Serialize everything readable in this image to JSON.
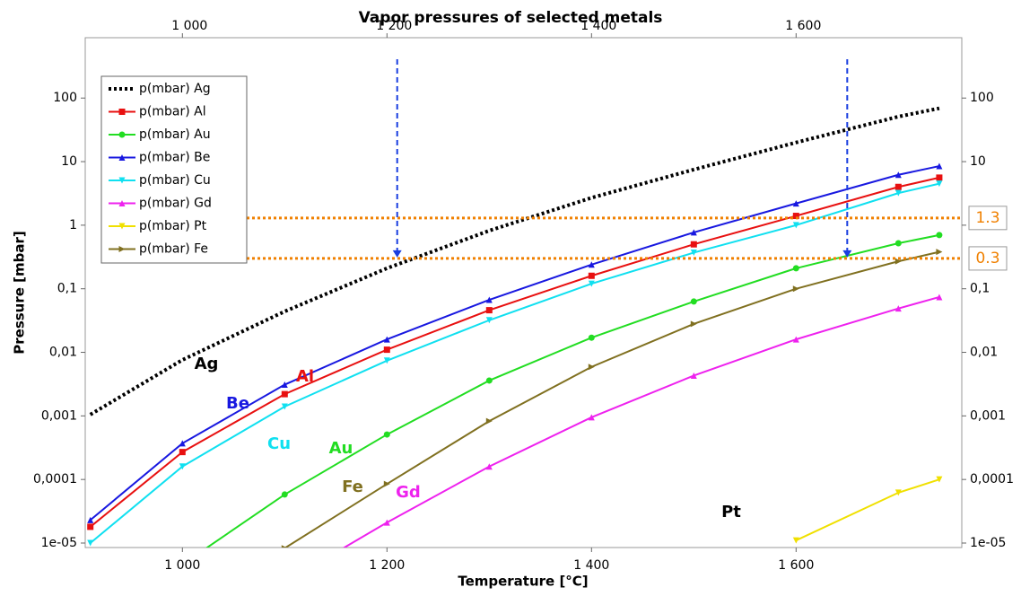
{
  "chart_data": {
    "type": "line",
    "title": "Vapor pressures of selected metals",
    "x_label": "Temperature [°C]",
    "y_label": "Pressure [mbar]",
    "x": [
      910,
      1000,
      1100,
      1200,
      1300,
      1400,
      1500,
      1600,
      1700,
      1740
    ],
    "xlim": [
      905,
      1762
    ],
    "xticks": [
      {
        "value": 1000,
        "label": "1 000"
      },
      {
        "value": 1200,
        "label": "1 200"
      },
      {
        "value": 1400,
        "label": "1 400"
      },
      {
        "value": 1600,
        "label": "1 600"
      }
    ],
    "ylim": [
      8.5e-06,
      890
    ],
    "log_y": true,
    "yticks": [
      100,
      10,
      1,
      {
        "value": 0.1,
        "label": "0,1"
      },
      {
        "value": 0.01,
        "label": "0,01"
      },
      {
        "value": 0.001,
        "label": "0,001"
      },
      {
        "value": 0.0001,
        "label": "0,0001"
      },
      {
        "value": 1e-05,
        "label": "1e-05"
      }
    ],
    "legend": "top-left",
    "series": [
      {
        "name": "p(mbar) Ag",
        "color": "#000000",
        "marker": "dot-line",
        "values": [
          0.00105,
          0.0076,
          0.044,
          0.21,
          0.82,
          2.7,
          7.5,
          20,
          51,
          69
        ]
      },
      {
        "name": "p(mbar) Al",
        "color": "#e81010",
        "marker": "square",
        "values": [
          1.8e-05,
          0.00027,
          0.0022,
          0.011,
          0.046,
          0.16,
          0.5,
          1.4,
          4.0,
          5.6
        ]
      },
      {
        "name": "p(mbar) Au",
        "color": "#22dd22",
        "marker": "circle",
        "values": [
          null,
          4.6e-06,
          5.8e-05,
          0.00051,
          0.0036,
          0.017,
          0.063,
          0.21,
          0.52,
          0.7
        ]
      },
      {
        "name": "p(mbar) Be",
        "color": "#1818e0",
        "marker": "triangle-up",
        "values": [
          2.3e-05,
          0.00037,
          0.0031,
          0.016,
          0.067,
          0.24,
          0.77,
          2.2,
          6.2,
          8.5
        ]
      },
      {
        "name": "p(mbar) Cu",
        "color": "#10e0f0",
        "marker": "triangle-down",
        "values": [
          1e-05,
          0.00016,
          0.0014,
          0.0074,
          0.032,
          0.12,
          0.37,
          1.0,
          3.2,
          4.5
        ]
      },
      {
        "name": "p(mbar) Gd",
        "color": "#ee22ee",
        "marker": "triangle-up",
        "values": [
          null,
          null,
          2.4e-06,
          2.1e-05,
          0.00016,
          0.00095,
          0.0043,
          0.016,
          0.049,
          0.074
        ]
      },
      {
        "name": "p(mbar) Pt",
        "color": "#f0e000",
        "marker": "triangle-down",
        "values": [
          null,
          null,
          null,
          null,
          null,
          null,
          null,
          1.1e-05,
          6.2e-05,
          0.0001
        ]
      },
      {
        "name": "p(mbar) Fe",
        "color": "#807020",
        "marker": "triangle-right",
        "values": [
          null,
          null,
          8.3e-06,
          8.5e-05,
          0.00083,
          0.0059,
          0.028,
          0.1,
          0.27,
          0.38
        ]
      }
    ],
    "hlines": [
      1.3,
      0.3
    ],
    "hline_color": "#f08000",
    "vlines": [
      1210,
      1650
    ],
    "vline_color": "#1a3ee0",
    "annotations": [
      {
        "text": "Ag",
        "color": "#000000"
      },
      {
        "text": "Be",
        "color": "#1818e0"
      },
      {
        "text": "Al",
        "color": "#e81010"
      },
      {
        "text": "Cu",
        "color": "#10e0f0"
      },
      {
        "text": "Au",
        "color": "#22dd22"
      },
      {
        "text": "Fe",
        "color": "#807020"
      },
      {
        "text": "Gd",
        "color": "#ee22ee"
      },
      {
        "text": "Pt",
        "color": "#000000"
      }
    ]
  }
}
